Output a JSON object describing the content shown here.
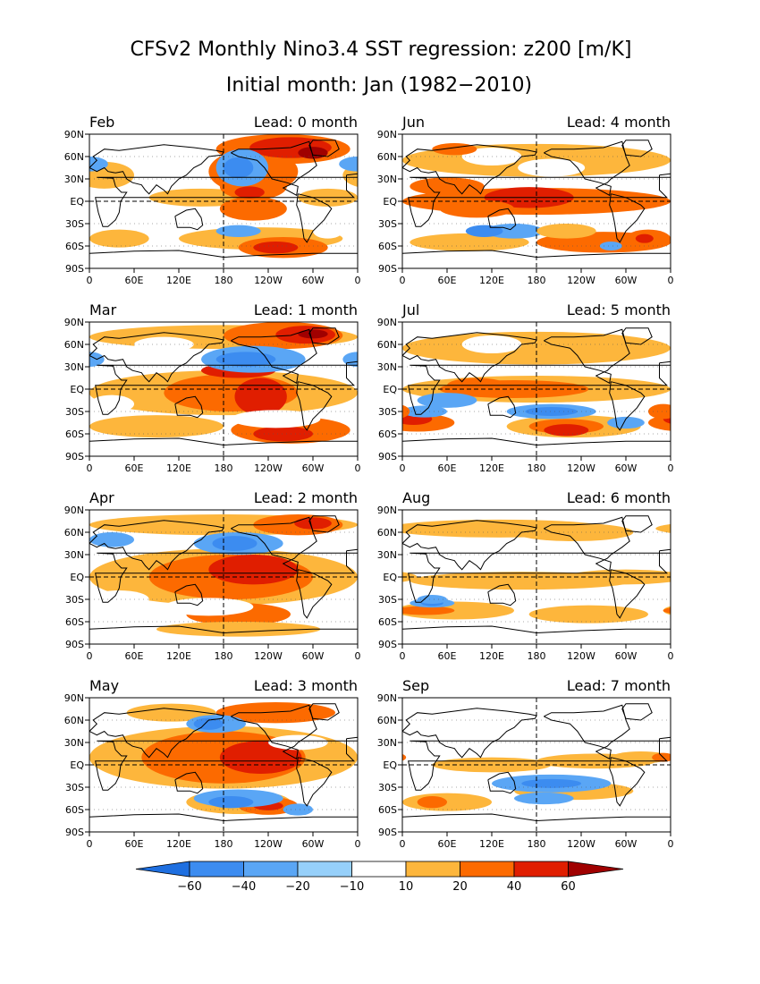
{
  "title": "CFSv2 Monthly Nino3.4 SST regression: z200 [m/K]",
  "subtitle": "Initial month: Jan (1982−2010)",
  "lon_ticks": [
    "0",
    "60E",
    "120E",
    "180",
    "120W",
    "60W",
    "0"
  ],
  "lat_ticks": [
    "90N",
    "60N",
    "30N",
    "EQ",
    "30S",
    "60S",
    "90S"
  ],
  "panels": [
    {
      "month": "Feb",
      "lead": "Lead: 0 month"
    },
    {
      "month": "Jun",
      "lead": "Lead: 4 month"
    },
    {
      "month": "Mar",
      "lead": "Lead: 1 month"
    },
    {
      "month": "Jul",
      "lead": "Lead: 5 month"
    },
    {
      "month": "Apr",
      "lead": "Lead: 2 month"
    },
    {
      "month": "Aug",
      "lead": "Lead: 6 month"
    },
    {
      "month": "May",
      "lead": "Lead: 3 month"
    },
    {
      "month": "Sep",
      "lead": "Lead: 7 month"
    }
  ],
  "colorbar": {
    "labels": [
      "−60",
      "−40",
      "−20",
      "−10",
      "10",
      "20",
      "40",
      "60"
    ],
    "colors": [
      "#1e6fe0",
      "#3c8cf0",
      "#5aa6f5",
      "#96d0fa",
      "#ffffff",
      "#fdb63c",
      "#fc6a00",
      "#e01e00",
      "#a00000"
    ]
  },
  "chart_data": {
    "type": "heatmap",
    "variable": "z200",
    "units": "m/K",
    "x_range": [
      0,
      360
    ],
    "y_range": [
      -90,
      90
    ],
    "levels": [
      -60,
      -40,
      -20,
      -10,
      10,
      20,
      40,
      60
    ]
  }
}
